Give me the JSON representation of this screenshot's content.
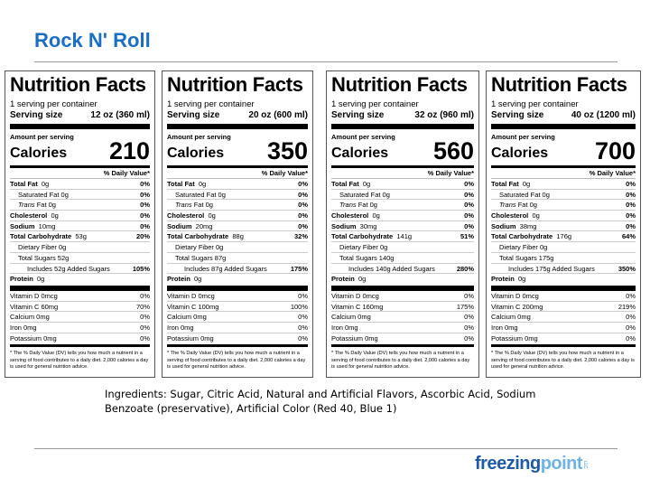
{
  "page_title": "Rock N' Roll",
  "common": {
    "heading": "Nutrition Facts",
    "servings": "1 serving per container",
    "serving_size_label": "Serving size",
    "amount_per_serving": "Amount per serving",
    "calories_label": "Calories",
    "dv_header": "% Daily Value*",
    "footnote": "* The % Daily Value (DV) tells you how much a nutrient in a serving of food contributes to a daily diet. 2,000 calories a day is used for general nutrition advice."
  },
  "labels": [
    {
      "serving_size": "12 oz (360 ml)",
      "calories": "210",
      "rows": [
        [
          "Total Fat",
          "0g",
          "0%"
        ],
        [
          "Saturated Fat 0g",
          "",
          "0%"
        ],
        [
          "Trans",
          "Fat 0g",
          "0%"
        ],
        [
          "Cholesterol",
          "0g",
          "0%"
        ],
        [
          "Sodium",
          "10mg",
          "0%"
        ],
        [
          "Total Carbohydrate",
          "53g",
          "20%"
        ],
        [
          "Dietary Fiber 0g",
          "",
          ""
        ],
        [
          "Total Sugars 52g",
          "",
          ""
        ],
        [
          "Includes 52g Added Sugars",
          "",
          "105%"
        ],
        [
          "Protein",
          "0g",
          ""
        ]
      ],
      "vitamins": [
        [
          "Vitamin D  0mcg",
          "0%"
        ],
        [
          "Vitamin C  60mg",
          "70%"
        ],
        [
          "Calcium  0mg",
          "0%"
        ],
        [
          "Iron  0mg",
          "0%"
        ],
        [
          "Potassium  0mg",
          "0%"
        ]
      ]
    },
    {
      "serving_size": "20 oz (600 ml)",
      "calories": "350",
      "rows": [
        [
          "Total Fat",
          "0g",
          "0%"
        ],
        [
          "Saturated Fat 0g",
          "",
          "0%"
        ],
        [
          "Trans",
          "Fat 0g",
          "0%"
        ],
        [
          "Cholesterol",
          "0g",
          "0%"
        ],
        [
          "Sodium",
          "20mg",
          "0%"
        ],
        [
          "Total Carbohydrate",
          "88g",
          "32%"
        ],
        [
          "Dietary Fiber 0g",
          "",
          ""
        ],
        [
          "Total Sugars 87g",
          "",
          ""
        ],
        [
          "Includes 87g Added Sugars",
          "",
          "175%"
        ],
        [
          "Protein",
          "0g",
          ""
        ]
      ],
      "vitamins": [
        [
          "Vitamin D  0mcg",
          "0%"
        ],
        [
          "Vitamin C  100mg",
          "100%"
        ],
        [
          "Calcium  0mg",
          "0%"
        ],
        [
          "Iron  0mg",
          "0%"
        ],
        [
          "Potassium  0mg",
          "0%"
        ]
      ]
    },
    {
      "serving_size": "32 oz (960 ml)",
      "calories": "560",
      "rows": [
        [
          "Total Fat",
          "0g",
          "0%"
        ],
        [
          "Saturated Fat 0g",
          "",
          "0%"
        ],
        [
          "Trans",
          "Fat 0g",
          "0%"
        ],
        [
          "Cholesterol",
          "0g",
          "0%"
        ],
        [
          "Sodium",
          "30mg",
          "0%"
        ],
        [
          "Total Carbohydrate",
          "141g",
          "51%"
        ],
        [
          "Dietary Fiber 0g",
          "",
          ""
        ],
        [
          "Total Sugars 140g",
          "",
          ""
        ],
        [
          "Includes 140g Added Sugars",
          "",
          "280%"
        ],
        [
          "Protein",
          "0g",
          ""
        ]
      ],
      "vitamins": [
        [
          "Vitamin D  0mcg",
          "0%"
        ],
        [
          "Vitamin C  160mg",
          "175%"
        ],
        [
          "Calcium  0mg",
          "0%"
        ],
        [
          "Iron  0mg",
          "0%"
        ],
        [
          "Potassium  0mg",
          "0%"
        ]
      ]
    },
    {
      "serving_size": "40 oz (1200 ml)",
      "calories": "700",
      "rows": [
        [
          "Total Fat",
          "0g",
          "0%"
        ],
        [
          "Saturated Fat 0g",
          "",
          "0%"
        ],
        [
          "Trans",
          "Fat 0g",
          "0%"
        ],
        [
          "Cholesterol",
          "0g",
          "0%"
        ],
        [
          "Sodium",
          "38mg",
          "0%"
        ],
        [
          "Total Carbohydrate",
          "176g",
          "64%"
        ],
        [
          "Dietary Fiber 0g",
          "",
          ""
        ],
        [
          "Total Sugars 175g",
          "",
          ""
        ],
        [
          "Includes 175g Added Sugars",
          "",
          "350%"
        ],
        [
          "Protein",
          "0g",
          ""
        ]
      ],
      "vitamins": [
        [
          "Vitamin D  0mcg",
          "0%"
        ],
        [
          "Vitamin C  200mg",
          "219%"
        ],
        [
          "Calcium  0mg",
          "0%"
        ],
        [
          "Iron  0mg",
          "0%"
        ],
        [
          "Potassium  0mg",
          "0%"
        ]
      ]
    }
  ],
  "ingredients": "Ingredients: Sugar, Citric Acid, Natural and Artificial Flavors, Ascorbic Acid, Sodium Benzoate (preservative), Artificial Color (Red 40, Blue 1)",
  "logo": {
    "part1": "freezing",
    "part2": "point",
    "suffix": "LLC"
  }
}
